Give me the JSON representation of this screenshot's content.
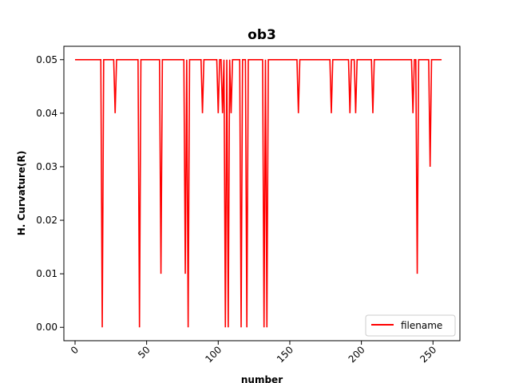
{
  "chart_data": {
    "type": "line",
    "title": "ob3",
    "xlabel": "number",
    "ylabel": "H. Curvature(R)",
    "xlim": [
      -7.8,
      268.8
    ],
    "ylim": [
      -0.0025,
      0.0525
    ],
    "xticks": [
      0,
      50,
      100,
      150,
      200,
      250
    ],
    "yticks": [
      0.0,
      0.01,
      0.02,
      0.03,
      0.04,
      0.05
    ],
    "ytick_labels": [
      "0.00",
      "0.01",
      "0.02",
      "0.03",
      "0.04",
      "0.05"
    ],
    "xtick_rotation": 45,
    "grid": false,
    "legend_position": "lower-right",
    "baseline": 0.05,
    "dips": [
      {
        "x": 19,
        "y": 0.0
      },
      {
        "x": 28,
        "y": 0.04
      },
      {
        "x": 45,
        "y": 0.0
      },
      {
        "x": 60,
        "y": 0.01
      },
      {
        "x": 77,
        "y": 0.01
      },
      {
        "x": 79,
        "y": 0.0
      },
      {
        "x": 89,
        "y": 0.04
      },
      {
        "x": 100,
        "y": 0.04
      },
      {
        "x": 103,
        "y": 0.04
      },
      {
        "x": 105,
        "y": 0.0
      },
      {
        "x": 107,
        "y": 0.0
      },
      {
        "x": 109,
        "y": 0.04
      },
      {
        "x": 116,
        "y": 0.0
      },
      {
        "x": 120,
        "y": 0.0
      },
      {
        "x": 132,
        "y": 0.0
      },
      {
        "x": 134,
        "y": 0.0
      },
      {
        "x": 156,
        "y": 0.04
      },
      {
        "x": 179,
        "y": 0.04
      },
      {
        "x": 192,
        "y": 0.04
      },
      {
        "x": 196,
        "y": 0.04
      },
      {
        "x": 208,
        "y": 0.04
      },
      {
        "x": 236,
        "y": 0.04
      },
      {
        "x": 239,
        "y": 0.01
      },
      {
        "x": 248,
        "y": 0.03
      }
    ],
    "x_start": 0,
    "x_end": 256,
    "series": [
      {
        "name": "filename",
        "color": "#ff0000"
      }
    ]
  }
}
